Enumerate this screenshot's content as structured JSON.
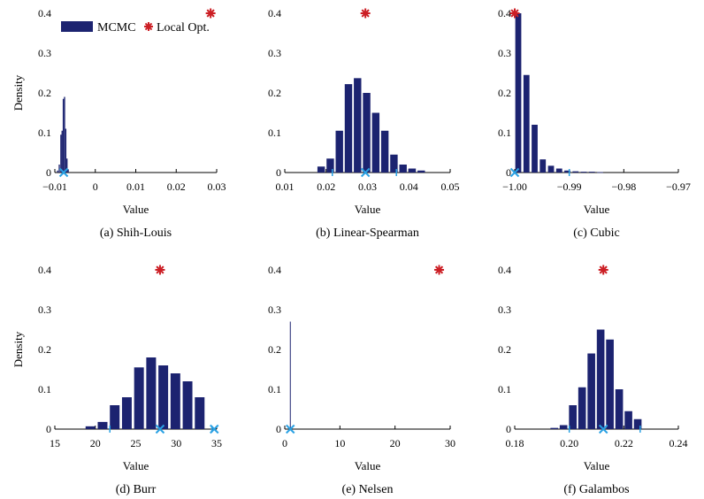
{
  "colors": {
    "bar": "#1c2370",
    "local_opt": "#cc1f25",
    "marker": "#2aa1e3",
    "axis": "#000000"
  },
  "legend": {
    "mcmc": "MCMC",
    "local_opt": "Local Opt."
  },
  "chart_data": [
    {
      "type": "bar",
      "caption": "(a) Shih-Louis",
      "xlabel": "Value",
      "ylabel": "Density",
      "xlim": [
        -0.01,
        0.03
      ],
      "ylim": [
        0,
        0.4
      ],
      "xticks": [
        -0.01,
        0,
        0.01,
        0.02,
        0.03
      ],
      "xtick_labels": [
        "−0.01",
        "0",
        "0.01",
        "0.02",
        "0.03"
      ],
      "yticks": [
        0,
        0.1,
        0.2,
        0.3,
        0.4
      ],
      "ytick_labels": [
        "0",
        "0.1",
        "0.2",
        "0.3",
        "0.4"
      ],
      "bin_width": 0.0003,
      "bins": [
        {
          "x": -0.0093,
          "y": 0.005
        },
        {
          "x": -0.0089,
          "y": 0.02
        },
        {
          "x": -0.0085,
          "y": 0.095
        },
        {
          "x": -0.0082,
          "y": 0.105
        },
        {
          "x": -0.0079,
          "y": 0.185
        },
        {
          "x": -0.0076,
          "y": 0.19
        },
        {
          "x": -0.0073,
          "y": 0.11
        },
        {
          "x": -0.007,
          "y": 0.035
        },
        {
          "x": -0.0067,
          "y": 0.008
        }
      ],
      "local_opt": {
        "x": 0.0285,
        "y": 0.4
      },
      "markers": [
        -0.0078
      ],
      "ticks_on_axis": [],
      "legend": true
    },
    {
      "type": "bar",
      "caption": "(b) Linear-Spearman",
      "xlabel": "Value",
      "ylabel": "",
      "xlim": [
        0.01,
        0.05
      ],
      "ylim": [
        0,
        0.4
      ],
      "xticks": [
        0.01,
        0.02,
        0.03,
        0.04,
        0.05
      ],
      "xtick_labels": [
        "0.01",
        "0.02",
        "0.03",
        "0.04",
        "0.05"
      ],
      "yticks": [
        0,
        0.1,
        0.2,
        0.3,
        0.4
      ],
      "ytick_labels": [
        "0",
        "0.1",
        "0.2",
        "0.3",
        "0.4"
      ],
      "bin_width": 0.0018,
      "bins": [
        {
          "x": 0.0188,
          "y": 0.015
        },
        {
          "x": 0.021,
          "y": 0.035
        },
        {
          "x": 0.0232,
          "y": 0.105
        },
        {
          "x": 0.0254,
          "y": 0.222
        },
        {
          "x": 0.0276,
          "y": 0.237
        },
        {
          "x": 0.0298,
          "y": 0.2
        },
        {
          "x": 0.032,
          "y": 0.15
        },
        {
          "x": 0.0342,
          "y": 0.105
        },
        {
          "x": 0.0364,
          "y": 0.045
        },
        {
          "x": 0.0386,
          "y": 0.02
        },
        {
          "x": 0.0408,
          "y": 0.01
        },
        {
          "x": 0.043,
          "y": 0.005
        }
      ],
      "local_opt": {
        "x": 0.0295,
        "y": 0.4
      },
      "markers": [
        0.0295
      ],
      "ticks_on_axis": [
        0.0215,
        0.037
      ],
      "legend": false
    },
    {
      "type": "bar",
      "caption": "(c) Cubic",
      "xlabel": "Value",
      "ylabel": "",
      "xlim": [
        -1.0,
        -0.97
      ],
      "ylim": [
        0,
        0.4
      ],
      "xticks": [
        -1.0,
        -0.99,
        -0.98,
        -0.97
      ],
      "xtick_labels": [
        "−1.00",
        "−0.99",
        "−0.98",
        "−0.97"
      ],
      "yticks": [
        0,
        0.1,
        0.2,
        0.3,
        0.4
      ],
      "ytick_labels": [
        "0",
        "0.1",
        "0.2",
        "0.3",
        "0.4"
      ],
      "bin_width": 0.0011,
      "bins": [
        {
          "x": -0.99935,
          "y": 0.4
        },
        {
          "x": -0.99785,
          "y": 0.245
        },
        {
          "x": -0.99635,
          "y": 0.12
        },
        {
          "x": -0.99485,
          "y": 0.033
        },
        {
          "x": -0.99335,
          "y": 0.017
        },
        {
          "x": -0.99185,
          "y": 0.01
        },
        {
          "x": -0.99035,
          "y": 0.005
        },
        {
          "x": -0.98885,
          "y": 0.003
        },
        {
          "x": -0.98735,
          "y": 0.002
        },
        {
          "x": -0.98585,
          "y": 0.002
        },
        {
          "x": -0.98435,
          "y": 0.001
        }
      ],
      "local_opt": {
        "x": -1.0,
        "y": 0.4
      },
      "markers": [
        -1.0
      ],
      "ticks_on_axis": [
        -0.99
      ],
      "legend": false
    },
    {
      "type": "bar",
      "caption": "(d) Burr",
      "xlabel": "Value",
      "ylabel": "Density",
      "xlim": [
        15,
        35
      ],
      "ylim": [
        0,
        0.4
      ],
      "xticks": [
        15,
        20,
        25,
        30,
        35
      ],
      "xtick_labels": [
        "15",
        "20",
        "25",
        "30",
        "35"
      ],
      "yticks": [
        0,
        0.1,
        0.2,
        0.3,
        0.4
      ],
      "ytick_labels": [
        "0",
        "0.1",
        "0.2",
        "0.3",
        "0.4"
      ],
      "bin_width": 1.2,
      "bins": [
        {
          "x": 19.4,
          "y": 0.007
        },
        {
          "x": 20.9,
          "y": 0.018
        },
        {
          "x": 22.4,
          "y": 0.06
        },
        {
          "x": 23.9,
          "y": 0.08
        },
        {
          "x": 25.4,
          "y": 0.155
        },
        {
          "x": 26.9,
          "y": 0.18
        },
        {
          "x": 28.4,
          "y": 0.16
        },
        {
          "x": 29.9,
          "y": 0.14
        },
        {
          "x": 31.4,
          "y": 0.12
        },
        {
          "x": 32.9,
          "y": 0.08
        }
      ],
      "local_opt": {
        "x": 28.0,
        "y": 0.4
      },
      "markers": [
        28.0,
        34.7
      ],
      "ticks_on_axis": [
        21.8,
        34.4
      ],
      "legend": false
    },
    {
      "type": "bar",
      "caption": "(e) Nelsen",
      "xlabel": "Value",
      "ylabel": "",
      "xlim": [
        0,
        30
      ],
      "ylim": [
        0,
        0.4
      ],
      "xticks": [
        0,
        10,
        20,
        30
      ],
      "xtick_labels": [
        "0",
        "10",
        "20",
        "30"
      ],
      "yticks": [
        0,
        0.1,
        0.2,
        0.3,
        0.4
      ],
      "ytick_labels": [
        "0",
        "0.1",
        "0.2",
        "0.3",
        "0.4"
      ],
      "bin_width": 0.15,
      "bins": [
        {
          "x": 1.0,
          "y": 0.27
        }
      ],
      "local_opt": {
        "x": 28.0,
        "y": 0.4
      },
      "markers": [
        1.0
      ],
      "ticks_on_axis": [],
      "legend": false
    },
    {
      "type": "bar",
      "caption": "(f) Galambos",
      "xlabel": "Value",
      "ylabel": "",
      "xlim": [
        0.18,
        0.24
      ],
      "ylim": [
        0,
        0.4
      ],
      "xticks": [
        0.18,
        0.2,
        0.22,
        0.24
      ],
      "xtick_labels": [
        "0.18",
        "0.20",
        "0.22",
        "0.24"
      ],
      "yticks": [
        0,
        0.1,
        0.2,
        0.3,
        0.4
      ],
      "ytick_labels": [
        "0",
        "0.1",
        "0.2",
        "0.3",
        "0.4"
      ],
      "bin_width": 0.0028,
      "bins": [
        {
          "x": 0.1945,
          "y": 0.003
        },
        {
          "x": 0.1979,
          "y": 0.01
        },
        {
          "x": 0.2013,
          "y": 0.06
        },
        {
          "x": 0.2047,
          "y": 0.105
        },
        {
          "x": 0.2081,
          "y": 0.19
        },
        {
          "x": 0.2115,
          "y": 0.25
        },
        {
          "x": 0.2149,
          "y": 0.225
        },
        {
          "x": 0.2183,
          "y": 0.1
        },
        {
          "x": 0.2217,
          "y": 0.045
        },
        {
          "x": 0.2251,
          "y": 0.025
        }
      ],
      "local_opt": {
        "x": 0.2125,
        "y": 0.4
      },
      "markers": [
        0.2125
      ],
      "ticks_on_axis": [
        0.2,
        0.226
      ],
      "legend": false
    }
  ]
}
